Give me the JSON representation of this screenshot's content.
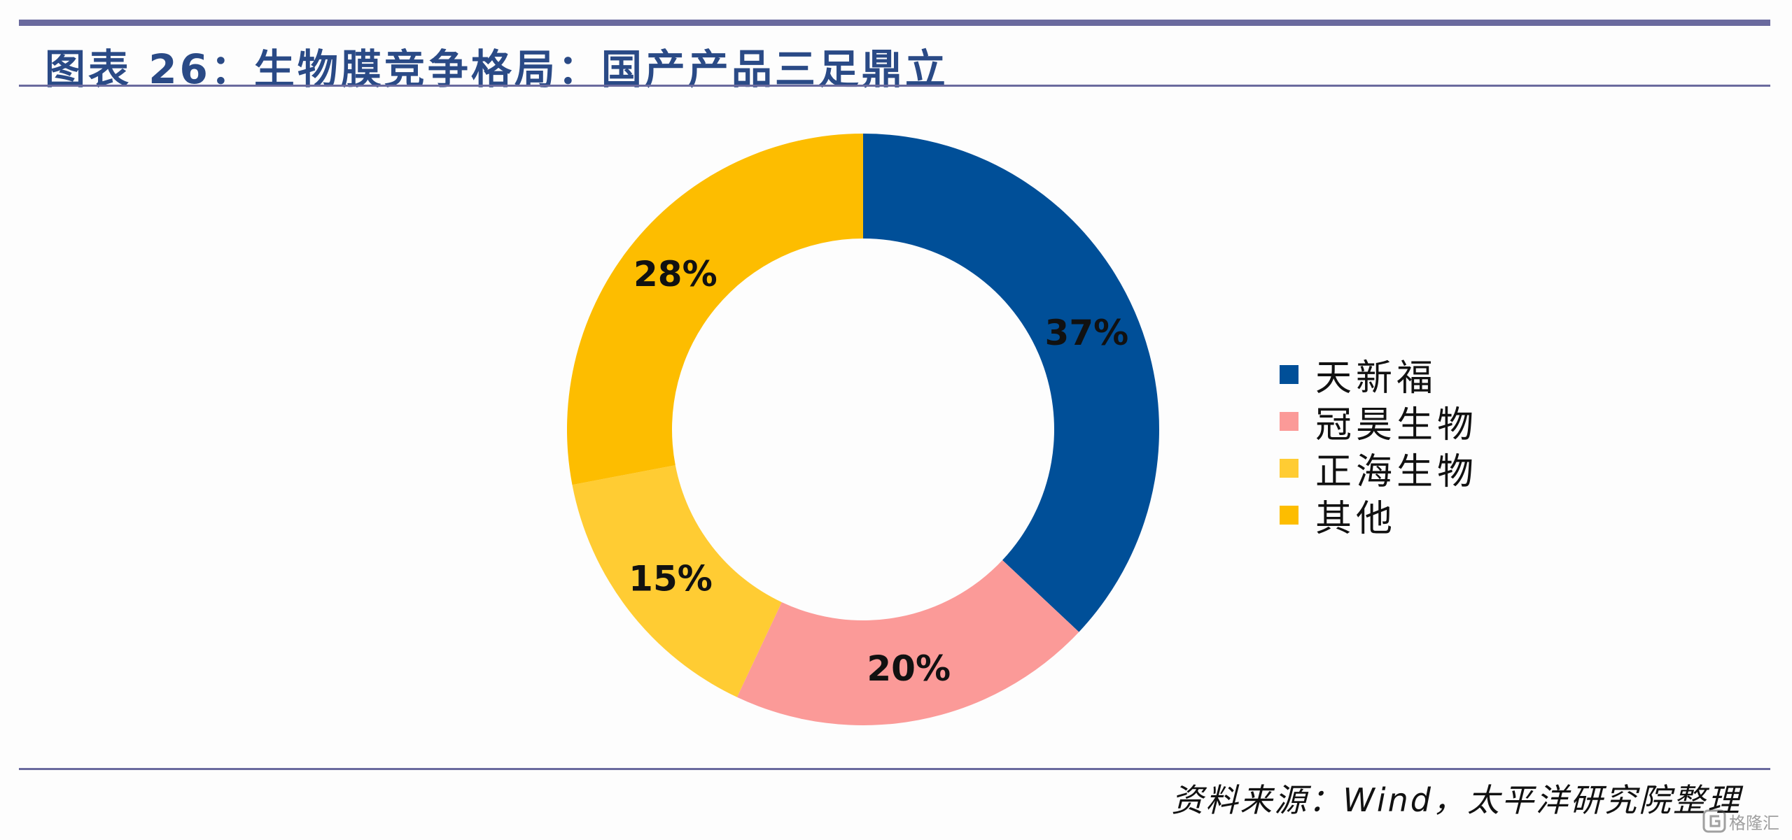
{
  "header": {
    "title": "图表 26：生物膜竞争格局：国产产品三足鼎立"
  },
  "footer": {
    "source": "资料来源：Wind，太平洋研究院整理",
    "watermark_text": "格隆汇"
  },
  "chart_data": {
    "type": "pie",
    "style": "donut",
    "legend_position": "right",
    "series": [
      {
        "name": "天新福",
        "value": 37,
        "label": "37%",
        "color": "#004f98"
      },
      {
        "name": "冠昊生物",
        "value": 20,
        "label": "20%",
        "color": "#fb9a98"
      },
      {
        "name": "正海生物",
        "value": 15,
        "label": "15%",
        "color": "#ffcc33"
      },
      {
        "name": "其他",
        "value": 28,
        "label": "28%",
        "color": "#fdbd00"
      }
    ]
  }
}
